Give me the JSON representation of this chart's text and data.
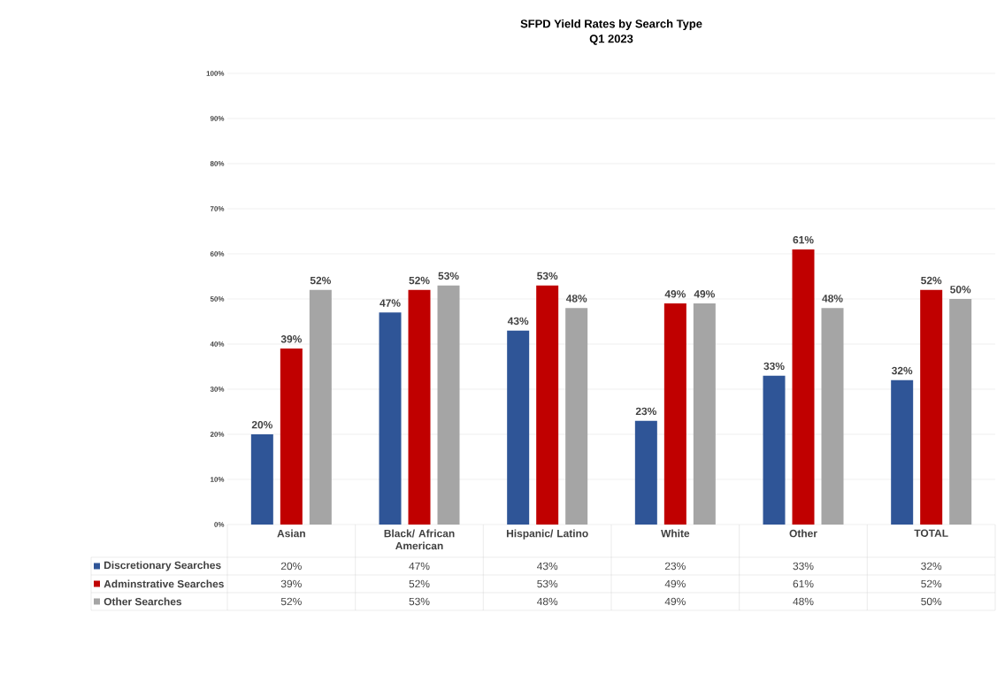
{
  "chart_data": {
    "type": "bar",
    "title": "SFPD Yield Rates by Search Type",
    "subtitle": "Q1 2023",
    "categories": [
      "Asian",
      "Black/ African American",
      "Hispanic/ Latino",
      "White",
      "Other",
      "TOTAL"
    ],
    "series": [
      {
        "name": "Discretionary Searches",
        "color": "#2f5597",
        "values": [
          20,
          47,
          43,
          23,
          33,
          32
        ],
        "value_labels": [
          "20%",
          "47%",
          "43%",
          "23%",
          "33%",
          "32%"
        ]
      },
      {
        "name": "Adminstrative Searches",
        "color": "#c00000",
        "values": [
          39,
          52,
          53,
          49,
          61,
          52
        ],
        "value_labels": [
          "39%",
          "52%",
          "53%",
          "49%",
          "61%",
          "52%"
        ]
      },
      {
        "name": "Other Searches",
        "color": "#a5a5a5",
        "values": [
          52,
          53,
          48,
          49,
          48,
          50
        ],
        "value_labels": [
          "52%",
          "53%",
          "48%",
          "49%",
          "48%",
          "50%"
        ]
      }
    ],
    "ylim": [
      0,
      100
    ],
    "yticks": [
      {
        "value": 0,
        "label": "0%"
      },
      {
        "value": 10,
        "label": "10%"
      },
      {
        "value": 20,
        "label": "20%"
      },
      {
        "value": 30,
        "label": "30%"
      },
      {
        "value": 40,
        "label": "40%"
      },
      {
        "value": 50,
        "label": "50%"
      },
      {
        "value": 60,
        "label": "60%"
      },
      {
        "value": 70,
        "label": "70%"
      },
      {
        "value": 80,
        "label": "80%"
      },
      {
        "value": 90,
        "label": "90%"
      },
      {
        "value": 100,
        "label": "100%"
      }
    ],
    "grid": "y",
    "legend": "bottom"
  }
}
